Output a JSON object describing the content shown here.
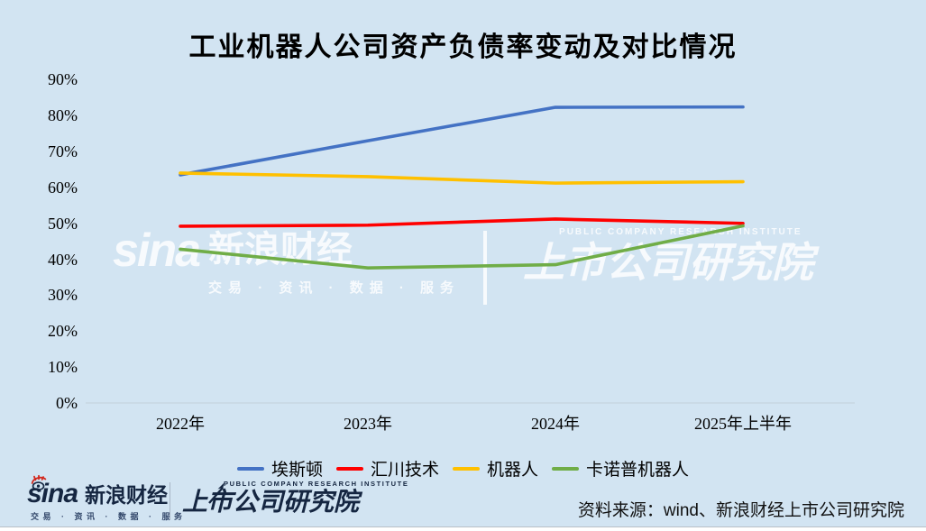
{
  "title": "工业机器人公司资产负债率变动及对比情况",
  "chart_data": {
    "type": "line",
    "categories": [
      "2022年",
      "2023年",
      "2024年",
      "2025年上半年"
    ],
    "series": [
      {
        "name": "埃斯顿",
        "color": "#4472C4",
        "values": [
          63.5,
          73.0,
          82.3,
          82.4
        ]
      },
      {
        "name": "汇川技术",
        "color": "#FF0000",
        "values": [
          49.2,
          49.5,
          51.2,
          50.0
        ]
      },
      {
        "name": "机器人",
        "color": "#FFC000",
        "values": [
          64.0,
          63.0,
          61.2,
          61.6
        ]
      },
      {
        "name": "卡诺普机器人",
        "color": "#70AD47",
        "values": [
          42.8,
          37.6,
          38.5,
          49.3
        ]
      }
    ],
    "title": "工业机器人公司资产负债率变动及对比情况",
    "xlabel": "",
    "ylabel": "",
    "ylim": [
      0,
      90
    ],
    "ytick_labels": [
      "0%",
      "10%",
      "20%",
      "30%",
      "40%",
      "50%",
      "60%",
      "70%",
      "80%",
      "90%"
    ],
    "grid": false,
    "legend_position": "bottom"
  },
  "watermark": {
    "sina": "sina",
    "brand": "新浪财经",
    "tagline": "交易 · 资讯 · 数据 · 服务",
    "institute_en": "PUBLIC COMPANY RESEARCH INSTITUTE",
    "institute": "上市公司研究院"
  },
  "footer": {
    "sina": "sina",
    "brand": "新浪财经",
    "tagline": "交易 · 资讯 · 数据 · 服务",
    "institute_en": "PUBLIC COMPANY RESEARCH INSTITUTE",
    "institute": "上市公司研究院",
    "source": "资料来源：wind、新浪财经上市公司研究院"
  }
}
